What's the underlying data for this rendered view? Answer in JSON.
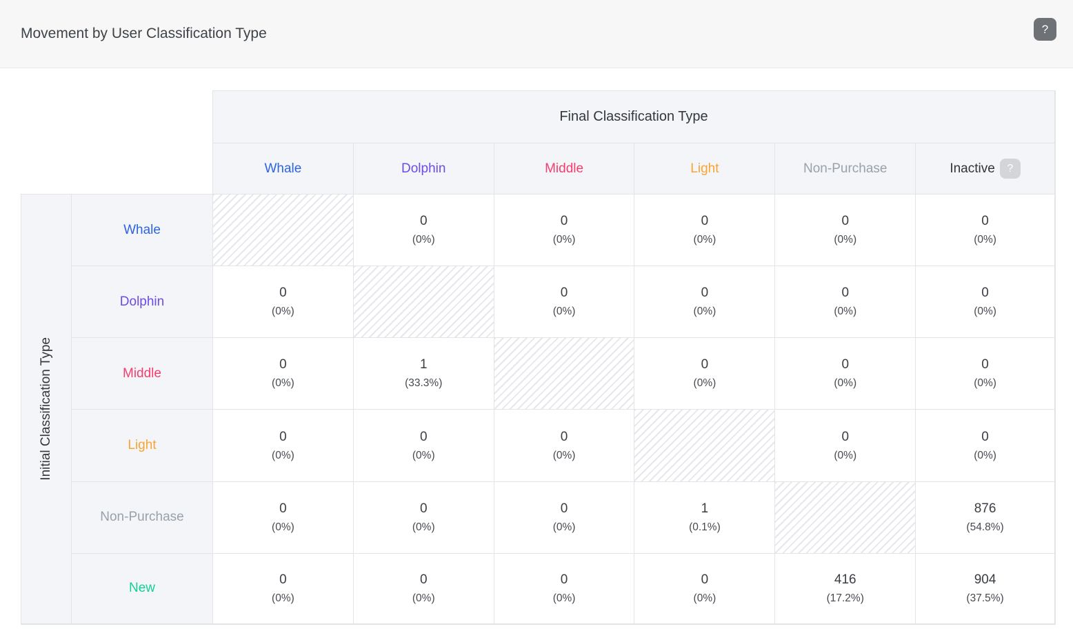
{
  "header": {
    "title": "Movement by User Classification Type",
    "help_label": "?"
  },
  "table": {
    "column_group_label": "Final Classification Type",
    "row_group_label": "Initial Classification Type",
    "columns": [
      {
        "label": "Whale",
        "color": "#2d63e3"
      },
      {
        "label": "Dolphin",
        "color": "#6e4be4"
      },
      {
        "label": "Middle",
        "color": "#f33e6d"
      },
      {
        "label": "Light",
        "color": "#f9a432"
      },
      {
        "label": "Non-Purchase",
        "color": "#99a1ab"
      },
      {
        "label": "Inactive",
        "color": "#2f343a",
        "help_label": "?"
      }
    ],
    "rows": [
      {
        "label": "Whale",
        "color": "#2d63e3",
        "cells": [
          {
            "hatched": true
          },
          {
            "value": "0",
            "pct": "(0%)"
          },
          {
            "value": "0",
            "pct": "(0%)"
          },
          {
            "value": "0",
            "pct": "(0%)"
          },
          {
            "value": "0",
            "pct": "(0%)"
          },
          {
            "value": "0",
            "pct": "(0%)"
          }
        ]
      },
      {
        "label": "Dolphin",
        "color": "#6e4be4",
        "cells": [
          {
            "value": "0",
            "pct": "(0%)"
          },
          {
            "hatched": true
          },
          {
            "value": "0",
            "pct": "(0%)"
          },
          {
            "value": "0",
            "pct": "(0%)"
          },
          {
            "value": "0",
            "pct": "(0%)"
          },
          {
            "value": "0",
            "pct": "(0%)"
          }
        ]
      },
      {
        "label": "Middle",
        "color": "#f33e6d",
        "cells": [
          {
            "value": "0",
            "pct": "(0%)"
          },
          {
            "value": "1",
            "pct": "(33.3%)"
          },
          {
            "hatched": true
          },
          {
            "value": "0",
            "pct": "(0%)"
          },
          {
            "value": "0",
            "pct": "(0%)"
          },
          {
            "value": "0",
            "pct": "(0%)"
          }
        ]
      },
      {
        "label": "Light",
        "color": "#f9a432",
        "cells": [
          {
            "value": "0",
            "pct": "(0%)"
          },
          {
            "value": "0",
            "pct": "(0%)"
          },
          {
            "value": "0",
            "pct": "(0%)"
          },
          {
            "hatched": true
          },
          {
            "value": "0",
            "pct": "(0%)"
          },
          {
            "value": "0",
            "pct": "(0%)"
          }
        ]
      },
      {
        "label": "Non-Purchase",
        "color": "#99a1ab",
        "cells": [
          {
            "value": "0",
            "pct": "(0%)"
          },
          {
            "value": "0",
            "pct": "(0%)"
          },
          {
            "value": "0",
            "pct": "(0%)"
          },
          {
            "value": "1",
            "pct": "(0.1%)"
          },
          {
            "hatched": true
          },
          {
            "value": "876",
            "pct": "(54.8%)"
          }
        ]
      },
      {
        "label": "New",
        "color": "#14d092",
        "cells": [
          {
            "value": "0",
            "pct": "(0%)"
          },
          {
            "value": "0",
            "pct": "(0%)"
          },
          {
            "value": "0",
            "pct": "(0%)"
          },
          {
            "value": "0",
            "pct": "(0%)"
          },
          {
            "value": "416",
            "pct": "(17.2%)"
          },
          {
            "value": "904",
            "pct": "(37.5%)"
          }
        ]
      }
    ]
  }
}
